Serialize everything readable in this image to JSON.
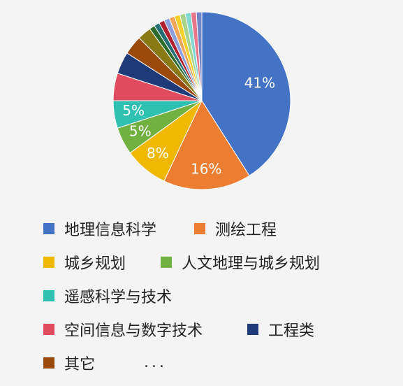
{
  "chart_data": {
    "type": "pie",
    "slices": [
      {
        "name": "地理信息科学",
        "value": 41,
        "label": "41%",
        "color": "#4472c4"
      },
      {
        "name": "测绘工程",
        "value": 16,
        "label": "16%",
        "color": "#ed7d31"
      },
      {
        "name": "城乡规划",
        "value": 8,
        "label": "8%",
        "color": "#f0b800"
      },
      {
        "name": "人文地理与城乡规划",
        "value": 5,
        "label": "5%",
        "color": "#70b13f"
      },
      {
        "name": "遥感科学与技术",
        "value": 5,
        "label": "5%",
        "color": "#2ec0b0"
      },
      {
        "name": "空间信息与数字技术",
        "value": 5,
        "label": "",
        "color": "#e04b5e"
      },
      {
        "name": "工程类",
        "value": 4,
        "label": "",
        "color": "#1f3a78"
      },
      {
        "name": "其它",
        "value": 3.5,
        "label": "",
        "color": "#9c4a0c"
      },
      {
        "name": "",
        "value": 2.5,
        "label": "",
        "color": "#8a7a16"
      },
      {
        "name": "",
        "value": 1,
        "label": "",
        "color": "#2d6b2a"
      },
      {
        "name": "",
        "value": 1,
        "label": "",
        "color": "#246f73"
      },
      {
        "name": "",
        "value": 1,
        "label": "",
        "color": "#b1202f"
      },
      {
        "name": "",
        "value": 1,
        "label": "",
        "color": "#8a9fdd"
      },
      {
        "name": "",
        "value": 1,
        "label": "",
        "color": "#f3a65a"
      },
      {
        "name": "",
        "value": 1,
        "label": "",
        "color": "#f7cf2a"
      },
      {
        "name": "",
        "value": 1,
        "label": "",
        "color": "#a7d38a"
      },
      {
        "name": "",
        "value": 1,
        "label": "",
        "color": "#7fd8cf"
      },
      {
        "name": "",
        "value": 1,
        "label": "",
        "color": "#e8768a"
      },
      {
        "name": "",
        "value": 1,
        "label": "",
        "color": "#6f86c9"
      }
    ],
    "legend": {
      "entries": [
        "地理信息科学",
        "测绘工程",
        "城乡规划",
        "人文地理与城乡规划",
        "遥感科学与技术",
        "空间信息与数字技术",
        "工程类",
        "其它"
      ],
      "more": "..."
    }
  }
}
